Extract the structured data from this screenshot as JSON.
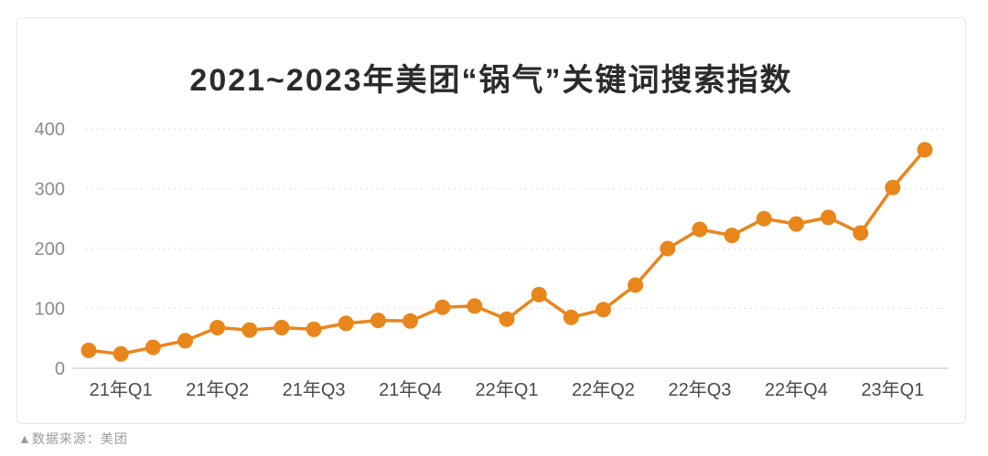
{
  "chart_data": {
    "type": "line",
    "title": "2021~2023年美团“锅气”关键词搜索指数",
    "x_tick_labels": [
      "21年Q1",
      "21年Q2",
      "21年Q3",
      "21年Q4",
      "22年Q1",
      "22年Q2",
      "22年Q3",
      "22年Q4",
      "23年Q1"
    ],
    "points_per_tick": 3,
    "values": [
      30,
      24,
      35,
      46,
      68,
      64,
      68,
      65,
      75,
      80,
      79,
      102,
      104,
      82,
      123,
      85,
      98,
      139,
      200,
      232,
      222,
      250,
      241,
      252,
      226,
      302,
      365
    ],
    "y_ticks": [
      0,
      100,
      200,
      300,
      400
    ],
    "ylim": [
      0,
      400
    ],
    "line_color": "#E8861C",
    "marker": "circle",
    "grid": "horizontal-dotted",
    "legend": "none",
    "axis_label_color_y": "#8c8c8c",
    "axis_label_color_x": "#4a4a4a"
  },
  "footer": {
    "source_label": "▲数据来源：美团"
  }
}
